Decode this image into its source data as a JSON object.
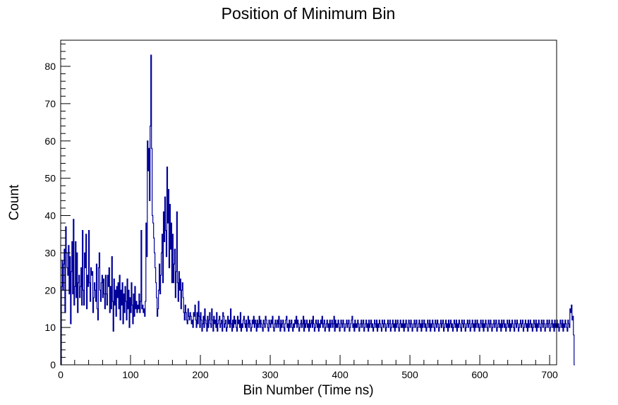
{
  "chart_data": {
    "type": "line",
    "style": "step-histogram",
    "title": "Position of Minimum Bin",
    "xlabel": "Bin Number (Time ns)",
    "ylabel": "Count",
    "xlim": [
      0,
      710
    ],
    "ylim": [
      0,
      87
    ],
    "x_ticks": [
      0,
      100,
      200,
      300,
      400,
      500,
      600,
      700
    ],
    "y_ticks": [
      0,
      10,
      20,
      30,
      40,
      50,
      60,
      70,
      80
    ],
    "grid": false,
    "legend": "none",
    "line_color": "#000099",
    "series": [
      {
        "bin_width": 1,
        "x_start": 0,
        "values": [
          0,
          21,
          28,
          20,
          27,
          31,
          14,
          37,
          30,
          26,
          24,
          32,
          19,
          29,
          11,
          25,
          33,
          19,
          39,
          16,
          21,
          33,
          18,
          30,
          14,
          22,
          24,
          18,
          21,
          26,
          16,
          36,
          20,
          16,
          30,
          26,
          35,
          15,
          24,
          21,
          36,
          22,
          17,
          26,
          24,
          25,
          14,
          18,
          22,
          20,
          17,
          27,
          15,
          12,
          26,
          30,
          20,
          17,
          22,
          24,
          18,
          23,
          19,
          15,
          24,
          19,
          16,
          24,
          21,
          26,
          14,
          21,
          15,
          29,
          17,
          9,
          23,
          16,
          20,
          13,
          21,
          18,
          22,
          15,
          24,
          12,
          20,
          16,
          22,
          11,
          19,
          14,
          21,
          17,
          12,
          23,
          15,
          20,
          10,
          18,
          14,
          22,
          16,
          11,
          19,
          13,
          21,
          15,
          17,
          14,
          16,
          15,
          19,
          14,
          17,
          36,
          15,
          16,
          14,
          15,
          13,
          17,
          38,
          29,
          60,
          52,
          58,
          44,
          64,
          83,
          58,
          40,
          38,
          34,
          30,
          26,
          22,
          18,
          13,
          15,
          20,
          27,
          19,
          24,
          30,
          35,
          22,
          41,
          33,
          45,
          36,
          29,
          53,
          38,
          47,
          26,
          43,
          31,
          38,
          22,
          35,
          22,
          27,
          31,
          18,
          25,
          41,
          22,
          17,
          25,
          20,
          23,
          15,
          20,
          22,
          18,
          14,
          12,
          16,
          14,
          12,
          11,
          15,
          13,
          12,
          14,
          13,
          11,
          12,
          10,
          14,
          13,
          16,
          12,
          10,
          14,
          11,
          17,
          13,
          10,
          14,
          12,
          9,
          11,
          13,
          10,
          15,
          12,
          11,
          9,
          13,
          10,
          12,
          14,
          11,
          10,
          15,
          12,
          9,
          13,
          11,
          12,
          10,
          14,
          9,
          11,
          12,
          13,
          10,
          11,
          12,
          9,
          14,
          13,
          10,
          11,
          12,
          9,
          10,
          13,
          11,
          12,
          10,
          15,
          11,
          9,
          12,
          10,
          13,
          11,
          12,
          10,
          9,
          13,
          11,
          12,
          10,
          14,
          9,
          11,
          10,
          12,
          13,
          11,
          10,
          12,
          9,
          11,
          13,
          10,
          12,
          11,
          9,
          10,
          12,
          11,
          13,
          10,
          12,
          11,
          9,
          12,
          10,
          11,
          13,
          10,
          12,
          11,
          10,
          9,
          12,
          11,
          10,
          13,
          12,
          11,
          10,
          9,
          12,
          11,
          10,
          12,
          11,
          13,
          10,
          9,
          11,
          12,
          10,
          11,
          12,
          10,
          13,
          11,
          9,
          12,
          10,
          11,
          12,
          10,
          9,
          11,
          12,
          13,
          10,
          11,
          9,
          12,
          10,
          11,
          12,
          10,
          9,
          11,
          10,
          12,
          11,
          13,
          10,
          12,
          11,
          9,
          10,
          11,
          12,
          10,
          11,
          13,
          9,
          12,
          10,
          11,
          12,
          10,
          11,
          9,
          12,
          10,
          11,
          12,
          10,
          13,
          11,
          9,
          10,
          12,
          11,
          10,
          12,
          9,
          11,
          10,
          12,
          11,
          13,
          10,
          11,
          12,
          9,
          10,
          11,
          12,
          10,
          11,
          9,
          12,
          10,
          11,
          12,
          10,
          11,
          13,
          9,
          12,
          10,
          11,
          10,
          12,
          11,
          9,
          10,
          12,
          11,
          10,
          12,
          11,
          9,
          10,
          11,
          12,
          10,
          11,
          12,
          9,
          10,
          11,
          12,
          13,
          10,
          11,
          9,
          12,
          10,
          11,
          10,
          12,
          11,
          9,
          10,
          11,
          12,
          10,
          11,
          12,
          9,
          10,
          11,
          12,
          10,
          11,
          9,
          12,
          10,
          11,
          12,
          10,
          11,
          9,
          10,
          12,
          11,
          10,
          12,
          9,
          11,
          10,
          12,
          11,
          10,
          9,
          12,
          11,
          10,
          12,
          11,
          9,
          10,
          11,
          12,
          10,
          11,
          12,
          9,
          10,
          11,
          12,
          10,
          11,
          9,
          12,
          10,
          11,
          12,
          10,
          9,
          11,
          12,
          10,
          11,
          10,
          12,
          9,
          11,
          10,
          12,
          11,
          10,
          9,
          12,
          11,
          10,
          12,
          11,
          9,
          10,
          11,
          12,
          10,
          11,
          12,
          9,
          10,
          11,
          12,
          10,
          11,
          9,
          12,
          10,
          11,
          12,
          10,
          11,
          9,
          10,
          12,
          11,
          10,
          12,
          9,
          11,
          10,
          12,
          11,
          10,
          9,
          12,
          11,
          10,
          12,
          11,
          9,
          10,
          11,
          12,
          10,
          11,
          12,
          9,
          10,
          11,
          12,
          10,
          11,
          9,
          12,
          10,
          11,
          12,
          10,
          11,
          9,
          10,
          12,
          11,
          10,
          12,
          9,
          11,
          10,
          12,
          11,
          10,
          9,
          12,
          11,
          10,
          12,
          11,
          9,
          10,
          11,
          12,
          10,
          11,
          12,
          9,
          10,
          11,
          12,
          10,
          11,
          9,
          12,
          10,
          11,
          12,
          10,
          11,
          9,
          10,
          12,
          11,
          10,
          12,
          9,
          11,
          10,
          12,
          11,
          10,
          9,
          12,
          11,
          10,
          12,
          11,
          9,
          10,
          11,
          12,
          10,
          11,
          12,
          9,
          10,
          11,
          12,
          10,
          11,
          9,
          12,
          10,
          11,
          12,
          10,
          11,
          9,
          10,
          12,
          11,
          10,
          12,
          9,
          11,
          10,
          12,
          11,
          10,
          9,
          12,
          11,
          10,
          12,
          11,
          9,
          10,
          11,
          12,
          10,
          11,
          12,
          9,
          10,
          11,
          12,
          10,
          11,
          9,
          12,
          10,
          11,
          12,
          10,
          11,
          9,
          10,
          12,
          11,
          10,
          12,
          9,
          11,
          10,
          12,
          11,
          10,
          9,
          12,
          11,
          10,
          12,
          11,
          9,
          10,
          11,
          12,
          10,
          11,
          12,
          9,
          10,
          11,
          12,
          10,
          11,
          9,
          12,
          10,
          11,
          12,
          10,
          11,
          9,
          10,
          12,
          11,
          10,
          12,
          9,
          11,
          10,
          12,
          11,
          10,
          9,
          12,
          11,
          10,
          15,
          14,
          16,
          12,
          13,
          8,
          0
        ]
      }
    ]
  }
}
